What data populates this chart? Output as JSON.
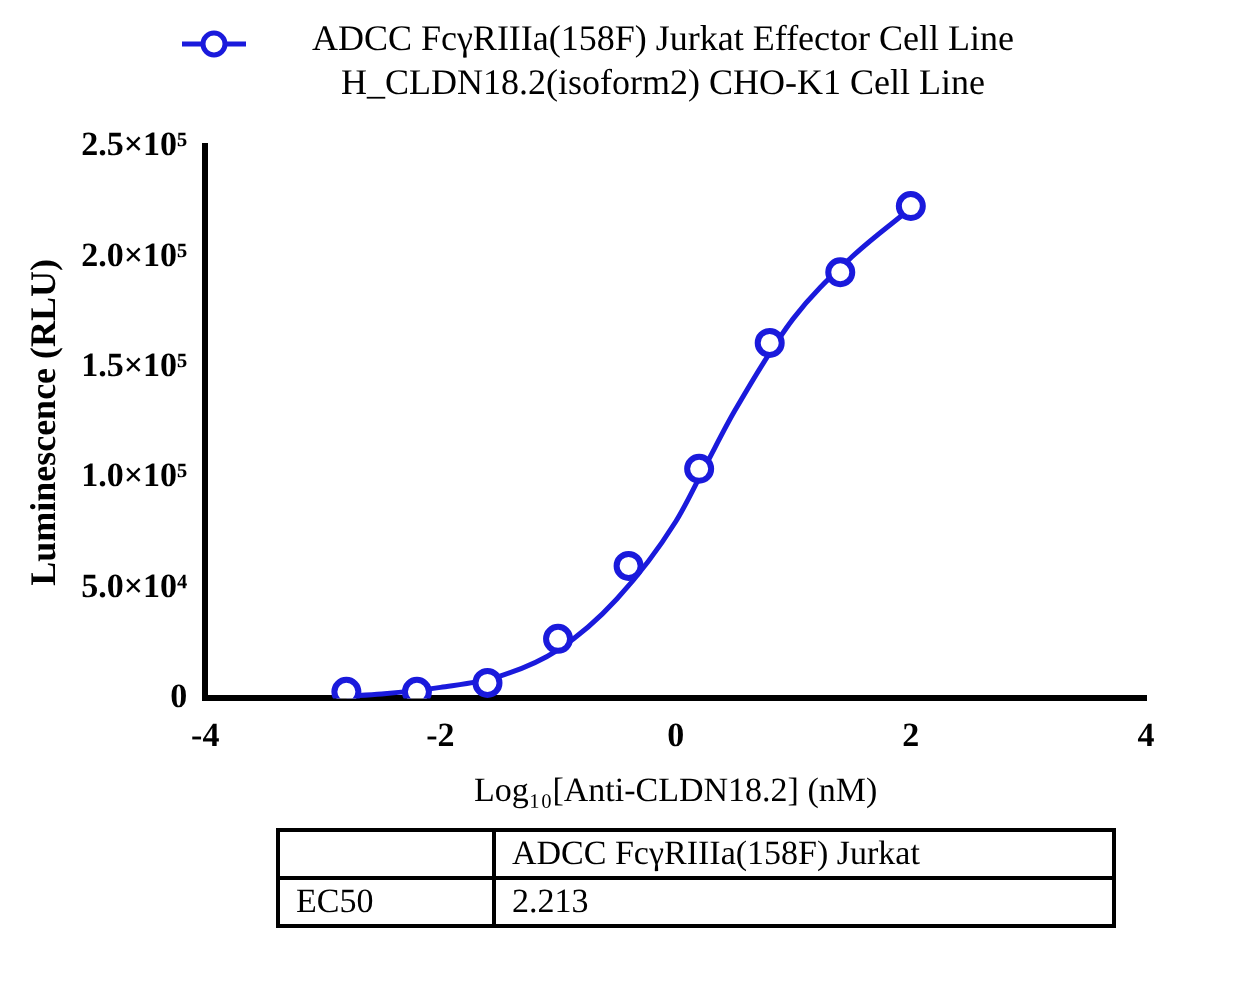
{
  "chart_data": {
    "type": "scatter",
    "xlabel": "Log₁₀[Anti-CLDN18.2] (nM)",
    "ylabel": "Luminescence (RLU)",
    "series": [
      {
        "name": "ADCC FcγRIIIa(158F) Jurkat Effector Cell Line H_CLDN18.2(isoform2) CHO-K1 Cell Line",
        "color": "#1a1adc",
        "marker": "circle",
        "x": [
          -2.8,
          -2.2,
          -1.6,
          -1.0,
          -0.4,
          0.2,
          0.8,
          1.4,
          2.0
        ],
        "values": [
          3000,
          3000,
          7000,
          27000,
          60000,
          104000,
          161000,
          193000,
          223000
        ]
      },
      {
        "type": "line",
        "color": "#1a1adc",
        "marker": "none",
        "x": [
          -2.8,
          -2.5,
          -2,
          -1.5,
          -1,
          -0.5,
          0,
          0.25,
          0.5,
          1,
          1.5,
          2
        ],
        "values": [
          1000,
          2000,
          5000,
          10000,
          22000,
          45000,
          80000,
          105000,
          130000,
          172000,
          200000,
          222000
        ]
      }
    ],
    "xlim": [
      -4,
      4
    ],
    "xticks": [
      -4,
      -2,
      0,
      2,
      4
    ],
    "ylim": [
      0,
      250000
    ],
    "yticks": [
      0,
      {
        "value": 50000,
        "label": "5.0×10⁴"
      },
      {
        "value": 100000,
        "label": "1.0×10⁵"
      },
      {
        "value": 150000,
        "label": "1.5×10⁵"
      },
      {
        "value": 200000,
        "label": "2.0×10⁵"
      },
      {
        "value": 250000,
        "label": "2.5×10⁵"
      }
    ],
    "grid": false,
    "legend": "top",
    "annotations": [
      "ADCC FcγRIIIa(158F) Jurkat",
      "EC50",
      "2.213"
    ]
  }
}
